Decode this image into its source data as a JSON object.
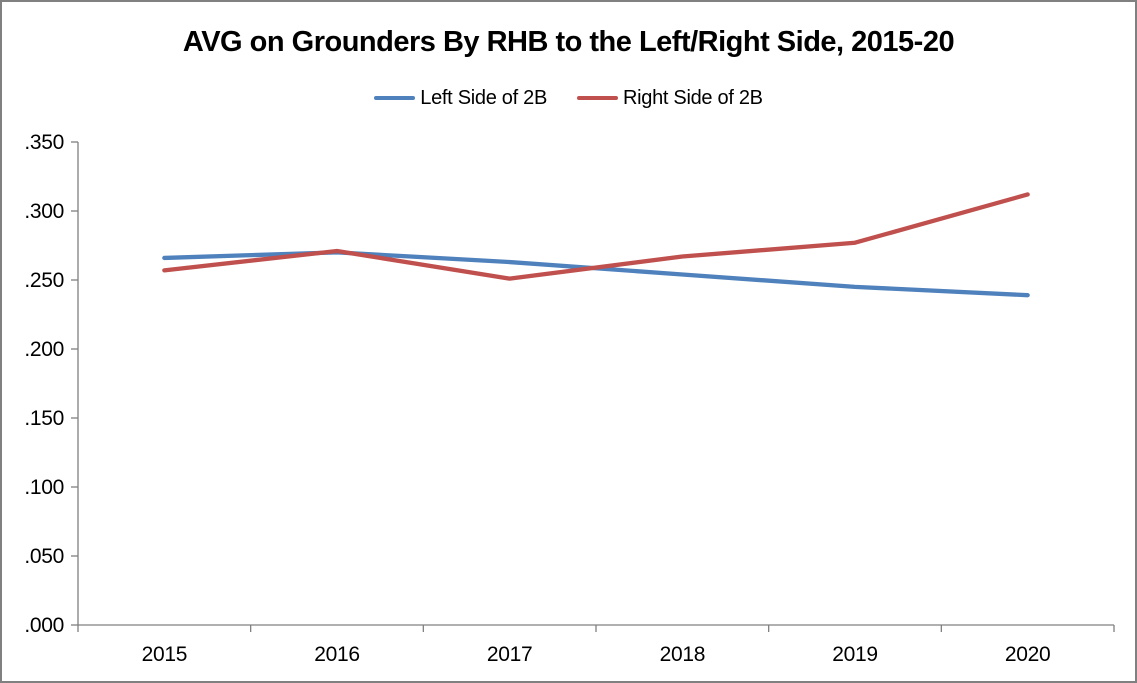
{
  "window": {
    "background": "#FFFFFF",
    "border_color": "#808080"
  },
  "chart_data": {
    "type": "line",
    "title": "AVG on Grounders By RHB to the Left/Right Side, 2015-20",
    "x": [
      "2015",
      "2016",
      "2017",
      "2018",
      "2019",
      "2020"
    ],
    "series": [
      {
        "name": "Left Side of 2B",
        "color": "#4F81BD",
        "values": [
          0.266,
          0.27,
          0.263,
          0.254,
          0.245,
          0.239
        ]
      },
      {
        "name": "Right Side of 2B",
        "color": "#C0504D",
        "values": [
          0.257,
          0.271,
          0.251,
          0.267,
          0.277,
          0.312
        ]
      }
    ],
    "xlabel": "",
    "ylabel": "",
    "ylim": [
      0,
      0.35
    ],
    "y_tick_step": 0.05,
    "y_tick_labels": [
      ".000",
      ".050",
      ".100",
      ".150",
      ".200",
      ".250",
      ".300",
      ".350"
    ],
    "legend_position": "top-center",
    "grid": false,
    "axis_color": "#808080",
    "text_color": "#000000"
  }
}
